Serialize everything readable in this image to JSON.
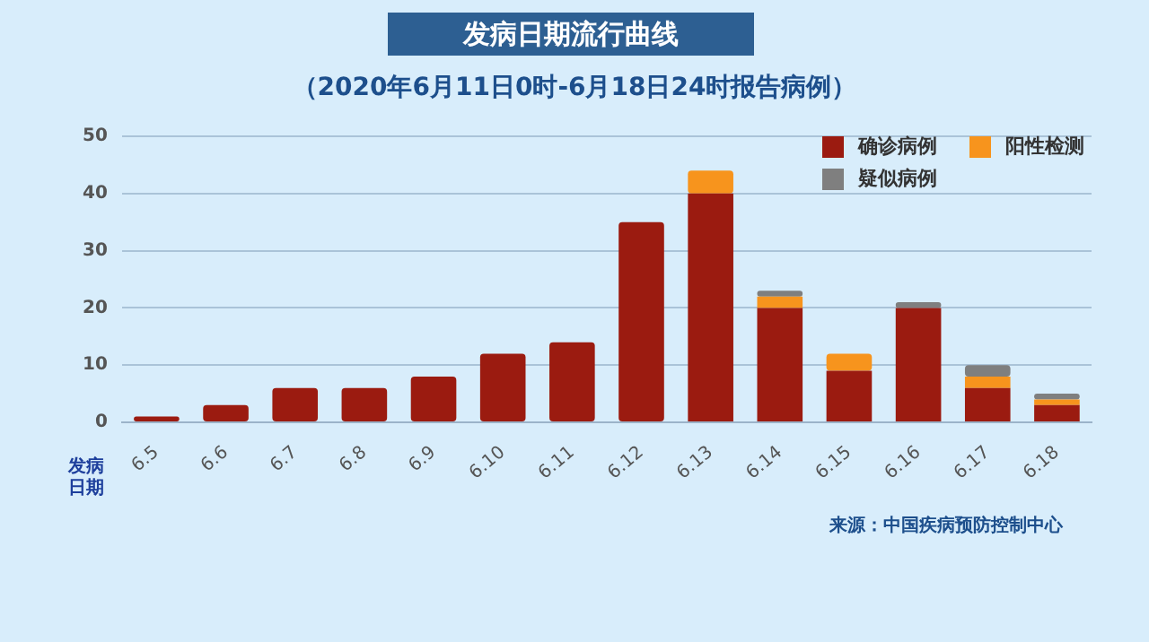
{
  "chart_data": {
    "type": "bar",
    "title": "发病日期流行曲线",
    "subtitle": "（2020年6月11日0时-6月18日24时报告病例）",
    "xlabel": "发病日期",
    "categories": [
      "6.5",
      "6.6",
      "6.7",
      "6.8",
      "6.9",
      "6.10",
      "6.11",
      "6.12",
      "6.13",
      "6.14",
      "6.15",
      "6.16",
      "6.17",
      "6.18"
    ],
    "series": [
      {
        "name": "确诊病例",
        "color": "#9b1b10",
        "values": [
          1,
          3,
          6,
          6,
          8,
          12,
          14,
          35,
          40,
          20,
          9,
          20,
          6,
          3
        ]
      },
      {
        "name": "阳性检测",
        "color": "#f7941d",
        "values": [
          0,
          0,
          0,
          0,
          0,
          0,
          0,
          0,
          4,
          2,
          3,
          0,
          2,
          1
        ]
      },
      {
        "name": "疑似病例",
        "color": "#7f7f7f",
        "values": [
          0,
          0,
          0,
          0,
          0,
          0,
          0,
          0,
          0,
          1,
          0,
          1,
          2,
          1
        ]
      }
    ],
    "stacked": true,
    "ylim": [
      0,
      50
    ],
    "yticks": [
      0,
      10,
      20,
      30,
      40,
      50
    ],
    "grid": "y",
    "legend": "top right",
    "annotations": [
      "来源：中国疾病预防控制中心"
    ]
  }
}
